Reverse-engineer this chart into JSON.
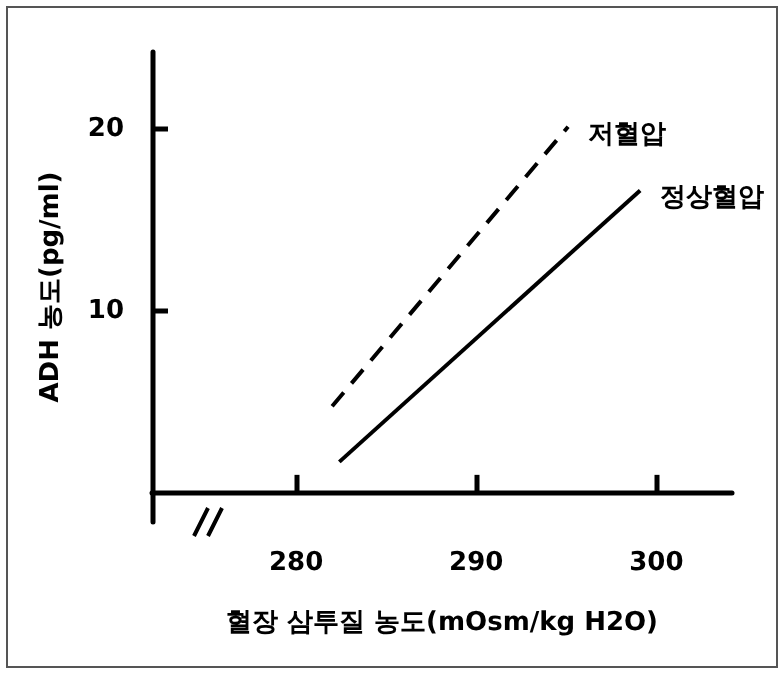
{
  "chart_data": {
    "type": "line",
    "xlabel": "혈장 삼투질 농도(mOsm/kg H2O)",
    "ylabel": "ADH 농도(pg/ml)",
    "xlim": [
      272,
      304.2
    ],
    "xticks": [
      280,
      290,
      300
    ],
    "ylim": [
      -1.6,
      24.2
    ],
    "yticks": [
      10,
      20
    ],
    "grid": false,
    "legend": false,
    "marker": "none",
    "series": [
      {
        "name": "저혈압",
        "color": "#000000",
        "line_style": "dashed",
        "x": [
          282.0,
          295.1
        ],
        "values": [
          4.75,
          20.1
        ]
      },
      {
        "name": "정상혈압",
        "color": "#000000",
        "line_style": "solid",
        "x": [
          282.4,
          299.1
        ],
        "values": [
          1.7,
          16.6
        ]
      }
    ]
  }
}
